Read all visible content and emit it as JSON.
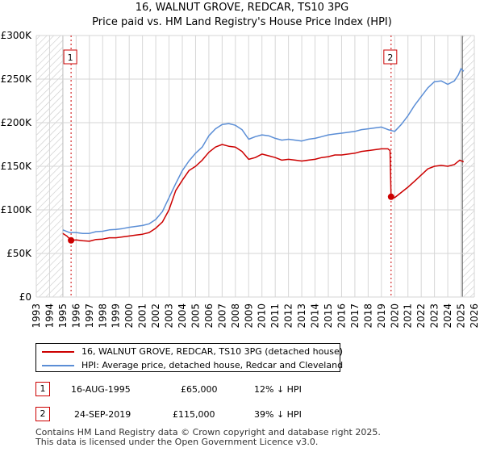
{
  "chart_data": {
    "type": "line",
    "title": "16, WALNUT GROVE, REDCAR, TS10 3PG",
    "subtitle": "Price paid vs. HM Land Registry's House Price Index (HPI)",
    "xlabel": "",
    "ylabel": "",
    "xlim": [
      1993,
      2026
    ],
    "ylim": [
      0,
      300000
    ],
    "y_ticks": [
      {
        "value": 0,
        "label": "£0"
      },
      {
        "value": 50000,
        "label": "£50K"
      },
      {
        "value": 100000,
        "label": "£100K"
      },
      {
        "value": 150000,
        "label": "£150K"
      },
      {
        "value": 200000,
        "label": "£200K"
      },
      {
        "value": 250000,
        "label": "£250K"
      },
      {
        "value": 300000,
        "label": "£300K"
      }
    ],
    "x_ticks": [
      "1993",
      "1994",
      "1995",
      "1996",
      "1997",
      "1998",
      "1999",
      "2000",
      "2001",
      "2002",
      "2003",
      "2004",
      "2005",
      "2006",
      "2007",
      "2008",
      "2009",
      "2010",
      "2011",
      "2012",
      "2013",
      "2014",
      "2015",
      "2016",
      "2017",
      "2018",
      "2019",
      "2020",
      "2021",
      "2022",
      "2023",
      "2024",
      "2025",
      "2026"
    ],
    "grid": true,
    "hatched_regions": [
      [
        1993,
        1995.0
      ],
      [
        2025.1,
        2026
      ]
    ],
    "series": [
      {
        "name": "16, WALNUT GROVE, REDCAR, TS10 3PG (detached house)",
        "color": "#cc0000",
        "points": [
          [
            1995.0,
            73000
          ],
          [
            1995.3,
            70000
          ],
          [
            1995.62,
            65000
          ],
          [
            1996.0,
            65500
          ],
          [
            1996.5,
            64500
          ],
          [
            1997.0,
            64000
          ],
          [
            1997.5,
            66000
          ],
          [
            1998.0,
            66500
          ],
          [
            1998.5,
            68000
          ],
          [
            1999.0,
            68000
          ],
          [
            1999.5,
            69000
          ],
          [
            2000.0,
            70000
          ],
          [
            2000.5,
            71000
          ],
          [
            2001.0,
            72000
          ],
          [
            2001.5,
            74000
          ],
          [
            2002.0,
            79000
          ],
          [
            2002.5,
            86000
          ],
          [
            2003.0,
            100000
          ],
          [
            2003.5,
            122000
          ],
          [
            2004.0,
            134000
          ],
          [
            2004.5,
            145000
          ],
          [
            2005.0,
            150000
          ],
          [
            2005.5,
            157000
          ],
          [
            2006.0,
            166000
          ],
          [
            2006.5,
            172000
          ],
          [
            2007.0,
            175000
          ],
          [
            2007.5,
            173000
          ],
          [
            2008.0,
            172000
          ],
          [
            2008.5,
            167000
          ],
          [
            2009.0,
            158000
          ],
          [
            2009.5,
            160000
          ],
          [
            2010.0,
            164000
          ],
          [
            2010.5,
            162000
          ],
          [
            2011.0,
            160000
          ],
          [
            2011.5,
            157000
          ],
          [
            2012.0,
            158000
          ],
          [
            2012.5,
            157000
          ],
          [
            2013.0,
            156000
          ],
          [
            2013.5,
            157000
          ],
          [
            2014.0,
            158000
          ],
          [
            2014.5,
            160000
          ],
          [
            2015.0,
            161000
          ],
          [
            2015.5,
            163000
          ],
          [
            2016.0,
            163000
          ],
          [
            2016.5,
            164000
          ],
          [
            2017.0,
            165000
          ],
          [
            2017.5,
            167000
          ],
          [
            2018.0,
            168000
          ],
          [
            2018.5,
            169000
          ],
          [
            2019.0,
            170000
          ],
          [
            2019.5,
            170000
          ],
          [
            2019.65,
            168000
          ],
          [
            2019.73,
            115000
          ],
          [
            2020.0,
            114000
          ],
          [
            2020.5,
            120000
          ],
          [
            2021.0,
            126000
          ],
          [
            2021.5,
            133000
          ],
          [
            2022.0,
            140000
          ],
          [
            2022.5,
            147000
          ],
          [
            2023.0,
            150000
          ],
          [
            2023.5,
            151000
          ],
          [
            2024.0,
            150000
          ],
          [
            2024.5,
            152000
          ],
          [
            2024.9,
            157000
          ],
          [
            2025.2,
            155000
          ]
        ]
      },
      {
        "name": "HPI: Average price, detached house, Redcar and Cleveland",
        "color": "#5b8ed6",
        "points": [
          [
            1995.0,
            77000
          ],
          [
            1995.5,
            74000
          ],
          [
            1996.0,
            74000
          ],
          [
            1996.5,
            73000
          ],
          [
            1997.0,
            73000
          ],
          [
            1997.5,
            75000
          ],
          [
            1998.0,
            75500
          ],
          [
            1998.5,
            77000
          ],
          [
            1999.0,
            77500
          ],
          [
            1999.5,
            78500
          ],
          [
            2000.0,
            80000
          ],
          [
            2000.5,
            81000
          ],
          [
            2001.0,
            82000
          ],
          [
            2001.5,
            84000
          ],
          [
            2002.0,
            89000
          ],
          [
            2002.5,
            98000
          ],
          [
            2003.0,
            114000
          ],
          [
            2003.5,
            130000
          ],
          [
            2004.0,
            145000
          ],
          [
            2004.5,
            156000
          ],
          [
            2005.0,
            165000
          ],
          [
            2005.5,
            172000
          ],
          [
            2006.0,
            185000
          ],
          [
            2006.5,
            193000
          ],
          [
            2007.0,
            198000
          ],
          [
            2007.5,
            199000
          ],
          [
            2008.0,
            197000
          ],
          [
            2008.5,
            192000
          ],
          [
            2009.0,
            181000
          ],
          [
            2009.5,
            184000
          ],
          [
            2010.0,
            186000
          ],
          [
            2010.5,
            185000
          ],
          [
            2011.0,
            182000
          ],
          [
            2011.5,
            180000
          ],
          [
            2012.0,
            181000
          ],
          [
            2012.5,
            180000
          ],
          [
            2013.0,
            179000
          ],
          [
            2013.5,
            181000
          ],
          [
            2014.0,
            182000
          ],
          [
            2014.5,
            184000
          ],
          [
            2015.0,
            186000
          ],
          [
            2015.5,
            187000
          ],
          [
            2016.0,
            188000
          ],
          [
            2016.5,
            189000
          ],
          [
            2017.0,
            190000
          ],
          [
            2017.5,
            192000
          ],
          [
            2018.0,
            193000
          ],
          [
            2018.5,
            194000
          ],
          [
            2019.0,
            195000
          ],
          [
            2019.5,
            192000
          ],
          [
            2020.0,
            190000
          ],
          [
            2020.5,
            198000
          ],
          [
            2021.0,
            208000
          ],
          [
            2021.5,
            220000
          ],
          [
            2022.0,
            230000
          ],
          [
            2022.5,
            240000
          ],
          [
            2023.0,
            247000
          ],
          [
            2023.5,
            248000
          ],
          [
            2024.0,
            244000
          ],
          [
            2024.5,
            248000
          ],
          [
            2024.8,
            255000
          ],
          [
            2025.0,
            262000
          ],
          [
            2025.2,
            259000
          ]
        ]
      }
    ],
    "sales": [
      {
        "label": "1",
        "x": 1995.62,
        "price": 65000,
        "date": "16-AUG-1995",
        "price_label": "£65,000",
        "hpi_note": "12% ↓ HPI"
      },
      {
        "label": "2",
        "x": 2019.73,
        "price": 115000,
        "date": "24-SEP-2019",
        "price_label": "£115,000",
        "hpi_note": "39% ↓ HPI"
      }
    ],
    "legend": {
      "position": "bottom-left"
    },
    "footer": [
      "Contains HM Land Registry data © Crown copyright and database right 2025.",
      "This data is licensed under the Open Government Licence v3.0."
    ]
  }
}
